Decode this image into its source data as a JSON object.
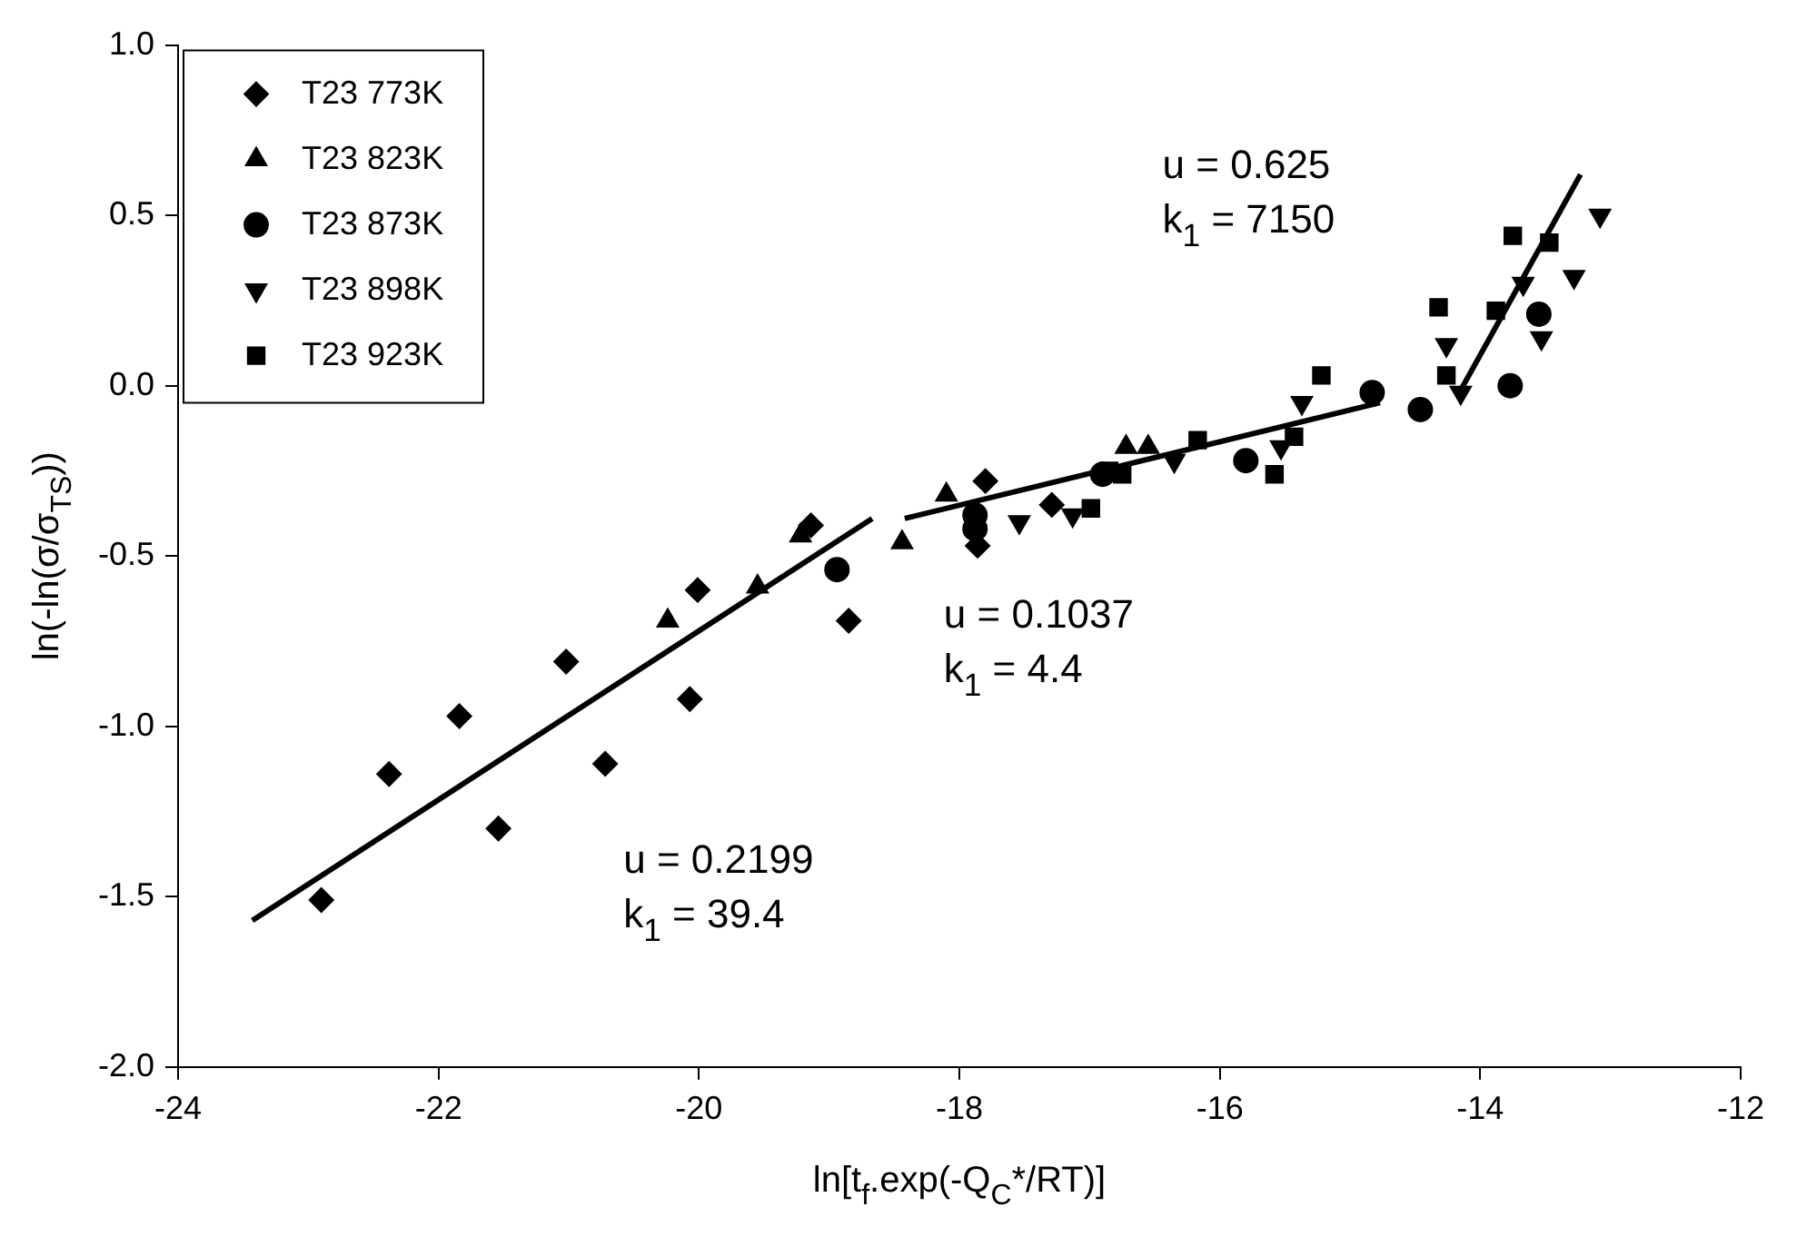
{
  "chart_data": {
    "type": "scatter",
    "xlabel": "ln[t$_{f}$.exp(-Q$_{C}$*/RT)]",
    "ylabel": "ln(-ln(σ/σ$_{TS}$))",
    "xlim": [
      -24,
      -12
    ],
    "xticks": [
      -24,
      -22,
      -20,
      -18,
      -16,
      -14,
      -12
    ],
    "ylim": [
      -2,
      1
    ],
    "yticks": [
      {
        "value": -2,
        "label": "-2.0"
      },
      {
        "value": -1.5,
        "label": "-1.5"
      },
      {
        "value": -1,
        "label": "-1.0"
      },
      {
        "value": -0.5,
        "label": "-0.5"
      },
      {
        "value": 0,
        "label": "0.0"
      },
      {
        "value": 0.5,
        "label": "0.5"
      },
      {
        "value": 1,
        "label": "1.0"
      }
    ],
    "grid": false,
    "legend": "top left",
    "series": [
      {
        "name": "T23 773K",
        "color": "#000000",
        "marker": "diamond",
        "x": [
          -22.9,
          -22.38,
          -21.84,
          -21.54,
          -21.02,
          -20.72,
          -20.07,
          -20.01,
          -19.14,
          -18.85,
          -17.86,
          -17.8,
          -17.29
        ],
        "values": [
          -1.51,
          -1.14,
          -0.97,
          -1.3,
          -0.81,
          -1.11,
          -0.92,
          -0.6,
          -0.41,
          -0.69,
          -0.47,
          -0.28,
          -0.35
        ]
      },
      {
        "name": "T23 823K",
        "color": "#000000",
        "marker": "triangle",
        "x": [
          -20.24,
          -19.55,
          -19.22,
          -18.44,
          -18.1,
          -16.72,
          -16.55
        ],
        "values": [
          -0.69,
          -0.59,
          -0.44,
          -0.46,
          -0.32,
          -0.18,
          -0.18
        ]
      },
      {
        "name": "T23 873K",
        "color": "#000000",
        "marker": "circle",
        "x": [
          -18.94,
          -17.88,
          -17.88,
          -16.9,
          -15.8,
          -14.83,
          -14.46,
          -13.77,
          -13.55
        ],
        "values": [
          -0.54,
          -0.38,
          -0.42,
          -0.26,
          -0.22,
          -0.02,
          -0.07,
          0.0,
          0.21
        ]
      },
      {
        "name": "T23 898K",
        "color": "#000000",
        "marker": "triangle_down",
        "x": [
          -17.54,
          -17.13,
          -16.35,
          -15.53,
          -15.37,
          -14.15,
          -14.26,
          -13.53,
          -13.67,
          -13.28,
          -13.08
        ],
        "values": [
          -0.4,
          -0.38,
          -0.22,
          -0.18,
          -0.05,
          -0.02,
          0.12,
          0.14,
          0.3,
          0.32,
          0.5
        ]
      },
      {
        "name": "T23 923K",
        "color": "#000000",
        "marker": "square",
        "x": [
          -16.99,
          -16.85,
          -16.75,
          -16.17,
          -15.58,
          -15.43,
          -15.22,
          -14.26,
          -14.32,
          -13.88,
          -13.75,
          -13.47
        ],
        "values": [
          -0.36,
          -0.25,
          -0.26,
          -0.16,
          -0.26,
          -0.15,
          0.03,
          0.03,
          0.23,
          0.22,
          0.44,
          0.42
        ]
      },
      {
        "type": "line",
        "color": "#000000",
        "marker": "none",
        "x": [
          -23.43,
          -18.67
        ],
        "values": [
          -1.57,
          -0.39
        ]
      },
      {
        "type": "line",
        "color": "#000000",
        "marker": "none",
        "x": [
          -18.42,
          -14.77
        ],
        "values": [
          -0.39,
          -0.05
        ]
      },
      {
        "type": "line",
        "color": "#000000",
        "marker": "none",
        "x": [
          -14.16,
          -13.23
        ],
        "values": [
          -0.02,
          0.62
        ]
      }
    ],
    "annotations": [
      "u = 0.625\nk$_{1}$ = 7150",
      "u = 0.1037\nk$_{1}$ = 4.4",
      "u = 0.2199\nk$_{1}$ = 39.4"
    ]
  }
}
